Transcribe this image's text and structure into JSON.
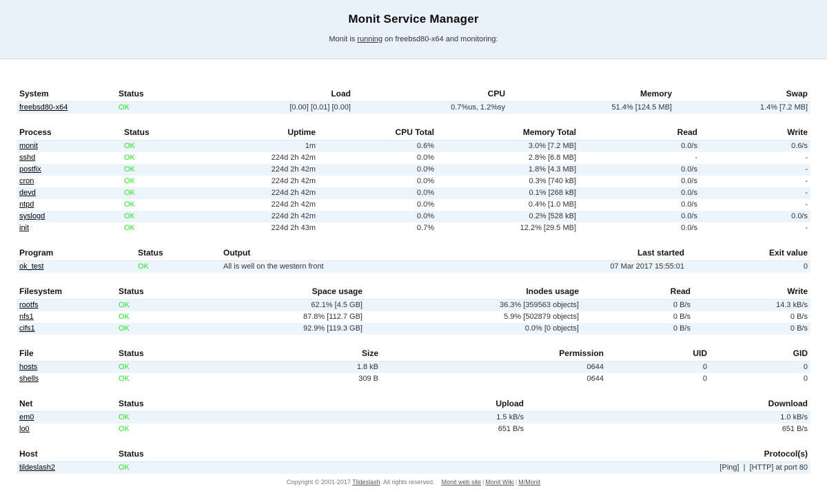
{
  "colors": {
    "status_ok": "#2ae22a",
    "row_stripe": "#edf5fc",
    "header_band": "#e9f2fa"
  },
  "header": {
    "title": "Monit Service Manager",
    "subtitle_prefix": "Monit is ",
    "subtitle_link": "running",
    "subtitle_suffix": " on freebsd80-x64 and monitoring:"
  },
  "tables": [
    {
      "id": "system",
      "columns": [
        "System",
        "Status",
        "Load",
        "CPU",
        "Memory",
        "Swap"
      ],
      "rows": [
        [
          "freebsd80-x64",
          "OK",
          "[0.00] [0.01] [0.00]",
          "0.7%us, 1.2%sy",
          "51.4% [124.5 MB]",
          "1.4% [7.2 MB]"
        ]
      ]
    },
    {
      "id": "process",
      "columns": [
        "Process",
        "Status",
        "Uptime",
        "CPU Total",
        "Memory Total",
        "Read",
        "Write"
      ],
      "rows": [
        [
          "monit",
          "OK",
          "1m",
          "0.6%",
          "3.0% [7.2 MB]",
          "0.0/s",
          "0.6/s"
        ],
        [
          "sshd",
          "OK",
          "224d 2h 42m",
          "0.0%",
          "2.8% [6.8 MB]",
          "-",
          "-"
        ],
        [
          "postfix",
          "OK",
          "224d 2h 42m",
          "0.0%",
          "1.8% [4.3 MB]",
          "0.0/s",
          "-"
        ],
        [
          "cron",
          "OK",
          "224d 2h 42m",
          "0.0%",
          "0.3% [740 kB]",
          "0.0/s",
          "-"
        ],
        [
          "devd",
          "OK",
          "224d 2h 42m",
          "0.0%",
          "0.1% [268 kB]",
          "0.0/s",
          "-"
        ],
        [
          "ntpd",
          "OK",
          "224d 2h 42m",
          "0.0%",
          "0.4% [1.0 MB]",
          "0.0/s",
          "-"
        ],
        [
          "syslogd",
          "OK",
          "224d 2h 42m",
          "0.0%",
          "0.2% [528 kB]",
          "0.0/s",
          "0.0/s"
        ],
        [
          "init",
          "OK",
          "224d 2h 43m",
          "0.7%",
          "12.2% [29.5 MB]",
          "0.0/s",
          "-"
        ]
      ]
    },
    {
      "id": "program",
      "columns": [
        "Program",
        "Status",
        "Output",
        "Last started",
        "Exit value"
      ],
      "rows": [
        [
          "ok_test",
          "OK",
          "All is well on the western front",
          "07 Mar 2017 15:55:01",
          "0"
        ]
      ]
    },
    {
      "id": "filesystem",
      "columns": [
        "Filesystem",
        "Status",
        "Space usage",
        "Inodes usage",
        "Read",
        "Write"
      ],
      "rows": [
        [
          "rootfs",
          "OK",
          "62.1% [4.5 GB]",
          "36.3% [359563 objects]",
          "0 B/s",
          "14.3 kB/s"
        ],
        [
          "nfs1",
          "OK",
          "87.8% [112.7 GB]",
          "5.9% [502879 objects]",
          "0 B/s",
          "0 B/s"
        ],
        [
          "cifs1",
          "OK",
          "92.9% [119.3 GB]",
          "0.0% [0 objects]",
          "0 B/s",
          "0 B/s"
        ]
      ]
    },
    {
      "id": "file",
      "columns": [
        "File",
        "Status",
        "Size",
        "Permission",
        "UID",
        "GID"
      ],
      "rows": [
        [
          "hosts",
          "OK",
          "1.8 kB",
          "0644",
          "0",
          "0"
        ],
        [
          "shells",
          "OK",
          "309 B",
          "0644",
          "0",
          "0"
        ]
      ]
    },
    {
      "id": "net",
      "columns": [
        "Net",
        "Status",
        "Upload",
        "Download"
      ],
      "rows": [
        [
          "em0",
          "OK",
          "1.5 kB/s",
          "1.0 kB/s"
        ],
        [
          "lo0",
          "OK",
          "651 B/s",
          "651 B/s"
        ]
      ]
    },
    {
      "id": "host",
      "columns": [
        "Host",
        "Status",
        "Protocol(s)"
      ],
      "rows": [
        [
          "tildeslash2",
          "OK",
          "[Ping]  |  [HTTP] at port 80"
        ]
      ]
    }
  ],
  "footer": {
    "copyright_prefix": "Copyright © 2001-2017 ",
    "tildeslash_link": "Tildeslash",
    "copyright_suffix": ". All rights reserved.",
    "links": [
      "Monit web site",
      "Monit Wiki",
      "M/Monit"
    ],
    "separator": "|"
  }
}
